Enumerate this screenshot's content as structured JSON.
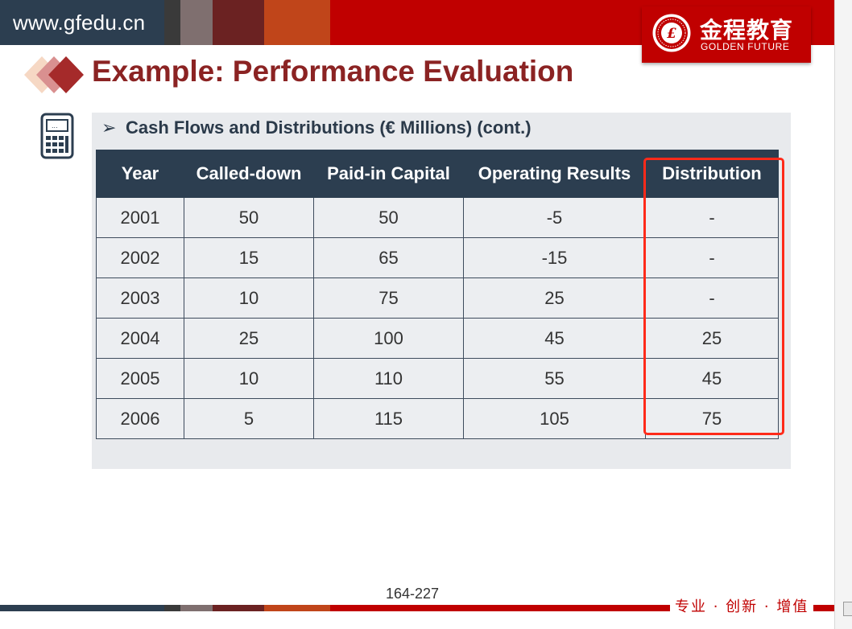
{
  "header": {
    "site_url": "www.gfedu.cn",
    "logo": {
      "name_cn": "金程教育",
      "name_en": "GOLDEN FUTURE",
      "seal_text": "GOLDEN FUTURE EDUCATION 1998"
    }
  },
  "slide": {
    "title": "Example: Performance Evaluation",
    "subtitle": "Cash Flows and Distributions (€ Millions) (cont.)",
    "subtitle_bullet": "➢",
    "table": {
      "columns": [
        "Year",
        "Called-down",
        "Paid-in Capital",
        "Operating Results",
        "Distribution"
      ],
      "rows": [
        [
          "2001",
          "50",
          "50",
          "-5",
          "-"
        ],
        [
          "2002",
          "15",
          "65",
          "-15",
          "-"
        ],
        [
          "2003",
          "10",
          "75",
          "25",
          "-"
        ],
        [
          "2004",
          "25",
          "100",
          "45",
          "25"
        ],
        [
          "2005",
          "10",
          "110",
          "55",
          "45"
        ],
        [
          "2006",
          "5",
          "115",
          "105",
          "75"
        ]
      ],
      "highlighted_column": "Distribution"
    },
    "page_number": "164-227"
  },
  "footer": {
    "slogan": "专业 · 创新 · 增值"
  },
  "icons": {
    "calculator": "calculator-icon",
    "diamonds": "diamond-decoration-icon"
  },
  "colors": {
    "brand_red": "#c00000",
    "title_red": "#8b2323",
    "table_header": "#2c3e50",
    "highlight": "#ff2a1a",
    "panel": "#e8eaed"
  }
}
